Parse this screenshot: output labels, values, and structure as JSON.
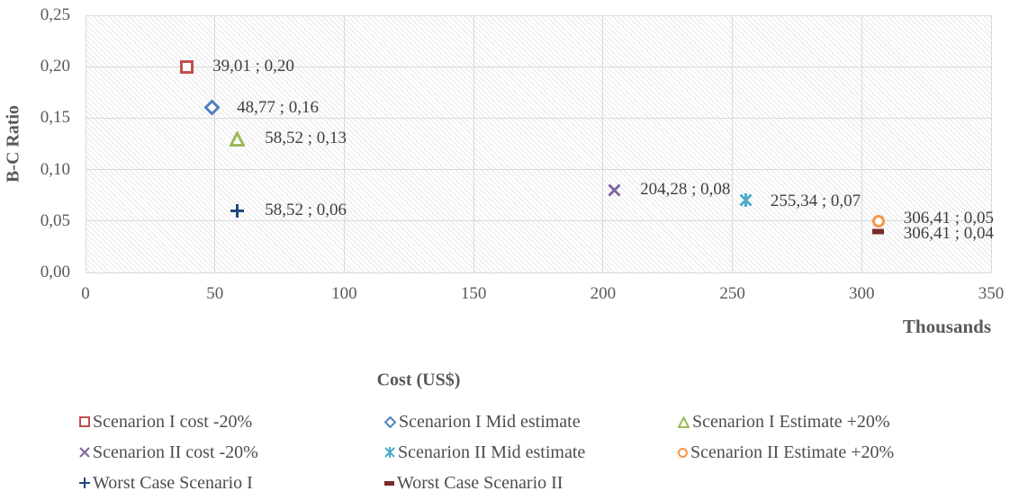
{
  "chart_data": {
    "type": "scatter",
    "title": "",
    "ylabel": "B-C Ratio",
    "xlabel": "Cost (US$)",
    "x_unit_label": "Thousands",
    "xlim": [
      0,
      350
    ],
    "ylim": [
      0,
      0.25
    ],
    "grid": true,
    "legend_position": "bottom",
    "x_ticks": [
      {
        "value": 0,
        "label": "0"
      },
      {
        "value": 50,
        "label": "50"
      },
      {
        "value": 100,
        "label": "100"
      },
      {
        "value": 150,
        "label": "150"
      },
      {
        "value": 200,
        "label": "200"
      },
      {
        "value": 250,
        "label": "250"
      },
      {
        "value": 300,
        "label": "300"
      },
      {
        "value": 350,
        "label": "350"
      }
    ],
    "y_ticks": [
      {
        "value": 0,
        "label": "0,00"
      },
      {
        "value": 0.05,
        "label": "0,05"
      },
      {
        "value": 0.1,
        "label": "0,10"
      },
      {
        "value": 0.15,
        "label": "0,15"
      },
      {
        "value": 0.2,
        "label": "0,20"
      },
      {
        "value": 0.25,
        "label": "0,25"
      }
    ],
    "series": [
      {
        "name": "Scenarion I cost -20%",
        "marker": "square",
        "color": "#C0504D",
        "x": 39.01,
        "y": 0.2,
        "data_label": "39,01 ; 0,20",
        "label_dx": 29,
        "label_dy": 0
      },
      {
        "name": "Scenarion I Mid estimate",
        "marker": "diamond",
        "color": "#4F81BD",
        "x": 48.77,
        "y": 0.16,
        "data_label": "48,77 ; 0,16",
        "label_dx": 28,
        "label_dy": 0
      },
      {
        "name": "Scenarion I Estimate +20%",
        "marker": "triangle",
        "color": "#9BBB59",
        "x": 58.52,
        "y": 0.13,
        "data_label": "58,52 ; 0,13",
        "label_dx": 31,
        "label_dy": 0
      },
      {
        "name": "Scenarion II cost -20%",
        "marker": "x",
        "color": "#8064A2",
        "x": 204.28,
        "y": 0.08,
        "data_label": "204,28 ; 0,08",
        "label_dx": 29,
        "label_dy": 0
      },
      {
        "name": "Scenarion II Mid estimate",
        "marker": "star",
        "color": "#4BACC6",
        "x": 255.34,
        "y": 0.07,
        "data_label": "255,34 ; 0,07",
        "label_dx": 27,
        "label_dy": 1
      },
      {
        "name": "Scenarion II Estimate +20%",
        "marker": "circle",
        "color": "#F79646",
        "x": 306.41,
        "y": 0.05,
        "data_label": "306,41 ; 0,05",
        "label_dx": 28,
        "label_dy": -3
      },
      {
        "name": "Worst Case Scenario I",
        "marker": "plus",
        "color": "#1F497D",
        "x": 58.52,
        "y": 0.06,
        "data_label": "58,52 ; 0,06",
        "label_dx": 31,
        "label_dy": 0
      },
      {
        "name": "Worst Case Scenario II",
        "marker": "dash",
        "color": "#772C2A",
        "x": 306.41,
        "y": 0.04,
        "data_label": "306,41 ; 0,04",
        "label_dx": 28,
        "label_dy": 3
      }
    ]
  }
}
